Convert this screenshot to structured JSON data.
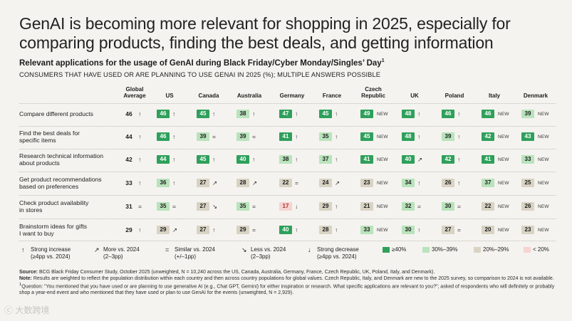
{
  "title": "GenAI is becoming more relevant for shopping in 2025, especially for comparing products, finding the best deals, and getting information",
  "subtitle": "Relevant applications for the usage of GenAI during Black Friday/Cyber Monday/Singles’ Day",
  "subtitle_sup": "1",
  "caption": "CONSUMERS THAT HAVE USED OR ARE PLANNING TO USE GENAI IN 2025 (%); MULTIPLE ANSWERS POSSIBLE",
  "columns": [
    {
      "line1": "Global",
      "line2": "Average"
    },
    {
      "line1": "US",
      "line2": ""
    },
    {
      "line1": "Canada",
      "line2": ""
    },
    {
      "line1": "Australia",
      "line2": ""
    },
    {
      "line1": "Germany",
      "line2": ""
    },
    {
      "line1": "France",
      "line2": ""
    },
    {
      "line1": "Czech",
      "line2": "Republic"
    },
    {
      "line1": "UK",
      "line2": ""
    },
    {
      "line1": "Poland",
      "line2": ""
    },
    {
      "line1": "Italy",
      "line2": ""
    },
    {
      "line1": "Denmark",
      "line2": ""
    }
  ],
  "rows": [
    {
      "line1": "Compare different products",
      "line2": ""
    },
    {
      "line1": "Find the best deals for",
      "line2": "specific items"
    },
    {
      "line1": "Research technical information",
      "line2": "about products"
    },
    {
      "line1": "Get product recommendations",
      "line2": "based on preferences"
    },
    {
      "line1": "Check product availability",
      "line2": "in stores"
    },
    {
      "line1": "Brainstorm ideas for gifts",
      "line2": "I want to buy"
    }
  ],
  "chart_data": {
    "type": "table",
    "title": "Relevant applications for the usage of GenAI during Black Friday/Cyber Monday/Singles’ Day",
    "unit": "%",
    "columns": [
      "Global Average",
      "US",
      "Canada",
      "Australia",
      "Germany",
      "France",
      "Czech Republic",
      "UK",
      "Poland",
      "Italy",
      "Denmark"
    ],
    "rows": [
      "Compare different products",
      "Find the best deals for specific items",
      "Research technical information about products",
      "Get product recommendations based on preferences",
      "Check product availability in stores",
      "Brainstorm ideas for gifts I want to buy"
    ],
    "values": [
      [
        46,
        46,
        45,
        38,
        47,
        45,
        49,
        48,
        46,
        46,
        39
      ],
      [
        44,
        46,
        39,
        39,
        41,
        35,
        45,
        48,
        39,
        42,
        43
      ],
      [
        42,
        44,
        45,
        40,
        38,
        37,
        41,
        40,
        42,
        41,
        33
      ],
      [
        33,
        36,
        27,
        28,
        22,
        24,
        23,
        34,
        26,
        37,
        25
      ],
      [
        31,
        35,
        27,
        35,
        17,
        29,
        21,
        32,
        30,
        22,
        26
      ],
      [
        29,
        29,
        27,
        29,
        40,
        28,
        33,
        30,
        27,
        20,
        23
      ]
    ],
    "trends": [
      [
        "↑",
        "↑",
        "↑",
        "↑",
        "↑",
        "↑",
        "NEW",
        "↑",
        "↑",
        "NEW",
        "NEW"
      ],
      [
        "↑",
        "↑",
        "=",
        "=",
        "↑",
        "↑",
        "NEW",
        "↑",
        "↑",
        "NEW",
        "NEW"
      ],
      [
        "↑",
        "↑",
        "↑",
        "↑",
        "↑",
        "↑",
        "NEW",
        "↗",
        "↑",
        "NEW",
        "NEW"
      ],
      [
        "↑",
        "↑",
        "↗",
        "↗",
        "=",
        "↗",
        "NEW",
        "↑",
        "↑",
        "NEW",
        "NEW"
      ],
      [
        "=",
        "=",
        "↘",
        "=",
        "↓",
        "↑",
        "NEW",
        "=",
        "=",
        "NEW",
        "NEW"
      ],
      [
        "↑",
        "↗",
        "↑",
        "=",
        "↑",
        "↑",
        "NEW",
        "↑",
        "=",
        "NEW",
        "NEW"
      ]
    ],
    "color_scale": [
      {
        "label": "≥40%",
        "min": 40,
        "color": "#2fa05b"
      },
      {
        "label": "30%–39%",
        "min": 30,
        "color": "#b9e3bc"
      },
      {
        "label": "20%–29%",
        "min": 20,
        "color": "#d9d3c4"
      },
      {
        "label": "< 20%",
        "min": 0,
        "color": "#f7d3d1"
      }
    ]
  },
  "legend": [
    {
      "symbol": "↑",
      "line1": "Strong increase",
      "line2": "(≥4pp vs. 2024)"
    },
    {
      "symbol": "↗",
      "line1": "More vs. 2024",
      "line2": "(2–3pp)"
    },
    {
      "symbol": "=",
      "line1": "Similar vs. 2024",
      "line2": "(+/–1pp)"
    },
    {
      "symbol": "↘",
      "line1": "Less vs. 2024",
      "line2": "(2–3pp)"
    },
    {
      "symbol": "↓",
      "line1": "Strong decrease",
      "line2": "(≥4pp vs. 2024)"
    }
  ],
  "notes": {
    "source_label": "Source:",
    "source": "BCG Black Friday Consumer Study, October 2025 (unweighted, N = 10,240 across the US, Canada, Australia, Germany, France, Czech Republic, UK, Poland, Italy, and Denmark).",
    "note_label": "Note:",
    "note": "Results are weighted to reflect the population distribution within each country and then across country populations for global values. Czech Republic, Italy, and Denmark are new to the 2025 survey, so comparison to 2024 is not available.",
    "footnote_mark": "1",
    "footnote": "Question: “You mentioned that you have used or are planning to use generative AI (e.g., Chat GPT, Gemini) for either inspiration or research. What specific applications are relevant to you?”; asked of respondents who will definitely or probably shop a year-end event and who mentioned that they have used or plan to use GenAI for the events (unweighted, N = 2,929)."
  },
  "watermark": "大数跨境"
}
